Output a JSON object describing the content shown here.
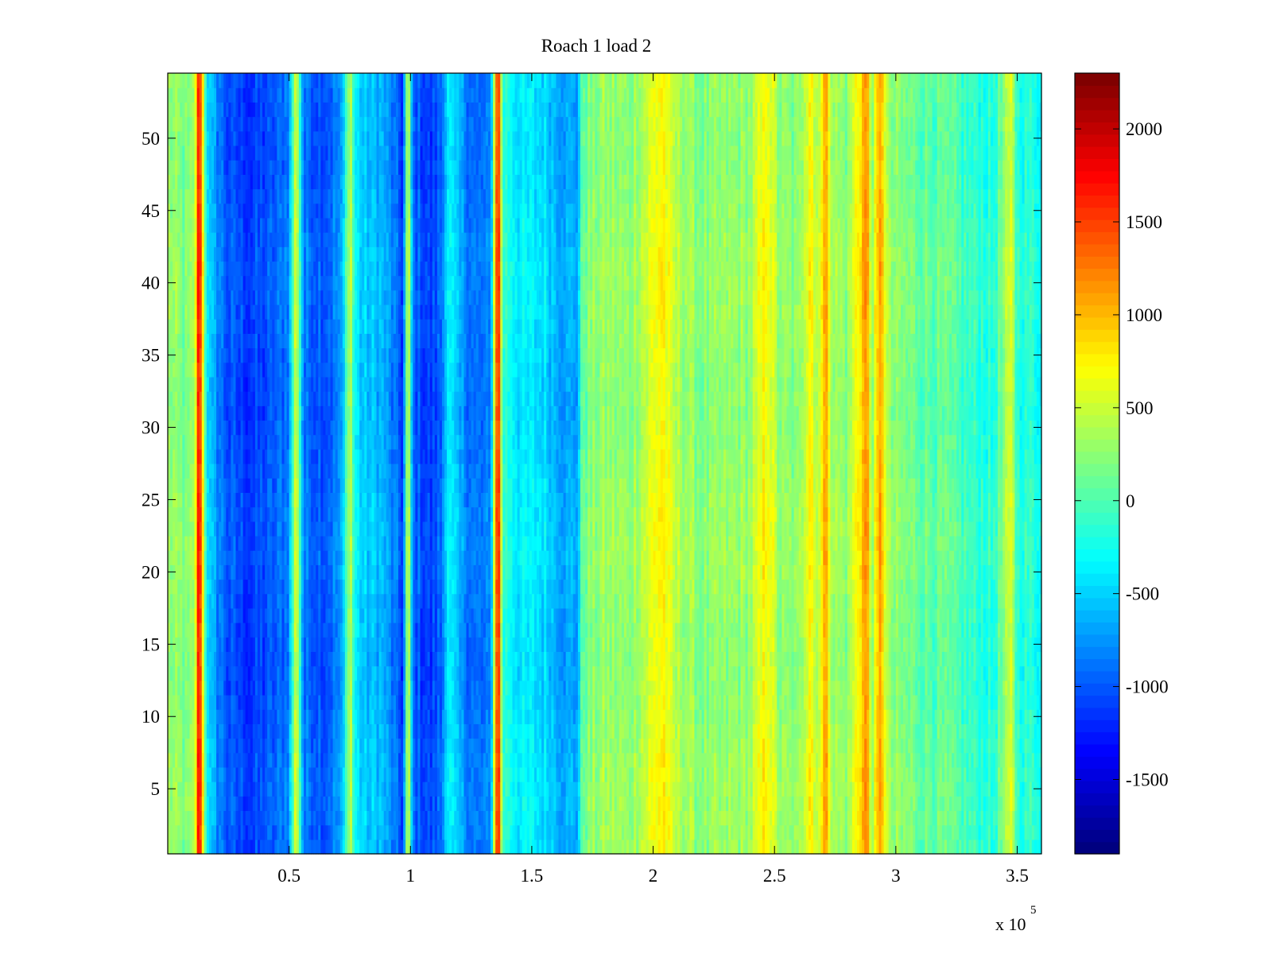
{
  "chart_data": {
    "type": "heatmap",
    "title": "Roach 1 load 2",
    "xlabel": "",
    "ylabel": "",
    "x_exponent_label": {
      "base": "x 10",
      "exponent": "5"
    },
    "xlim": [
      0,
      3.6
    ],
    "ylim": [
      0.5,
      54.5
    ],
    "x_ticks": [
      0.5,
      1,
      1.5,
      2,
      2.5,
      3,
      3.5
    ],
    "x_tick_labels": [
      "0.5",
      "1",
      "1.5",
      "2",
      "2.5",
      "3",
      "3.5"
    ],
    "y_ticks": [
      5,
      10,
      15,
      20,
      25,
      30,
      35,
      40,
      45,
      50
    ],
    "y_tick_labels": [
      "5",
      "10",
      "15",
      "20",
      "25",
      "30",
      "35",
      "40",
      "45",
      "50"
    ],
    "colorbar": {
      "colormap": "jet",
      "clim": [
        -1900,
        2300
      ],
      "ticks": [
        2000,
        1500,
        1000,
        500,
        0,
        -500,
        -1000,
        -1500
      ],
      "tick_labels": [
        "2000",
        "1500",
        "1000",
        "500",
        "0",
        "-500",
        "-1000",
        "-1500"
      ]
    },
    "rows": 54,
    "column_profile": [
      {
        "x": 0.0,
        "value": 300
      },
      {
        "x": 0.05,
        "value": 200
      },
      {
        "x": 0.08,
        "value": 150
      },
      {
        "x": 0.11,
        "value": 300
      },
      {
        "x": 0.13,
        "value": 2000
      },
      {
        "x": 0.15,
        "value": 300
      },
      {
        "x": 0.17,
        "value": -600
      },
      {
        "x": 0.25,
        "value": -1050
      },
      {
        "x": 0.35,
        "value": -1150
      },
      {
        "x": 0.45,
        "value": -1000
      },
      {
        "x": 0.5,
        "value": -800
      },
      {
        "x": 0.53,
        "value": 700
      },
      {
        "x": 0.56,
        "value": -900
      },
      {
        "x": 0.65,
        "value": -1000
      },
      {
        "x": 0.72,
        "value": -750
      },
      {
        "x": 0.75,
        "value": 600
      },
      {
        "x": 0.77,
        "value": -300
      },
      {
        "x": 0.8,
        "value": -550
      },
      {
        "x": 0.88,
        "value": -600
      },
      {
        "x": 0.93,
        "value": -900
      },
      {
        "x": 0.97,
        "value": -1150
      },
      {
        "x": 0.99,
        "value": 650
      },
      {
        "x": 1.01,
        "value": -950
      },
      {
        "x": 1.08,
        "value": -1150
      },
      {
        "x": 1.13,
        "value": -950
      },
      {
        "x": 1.15,
        "value": -300
      },
      {
        "x": 1.2,
        "value": -700
      },
      {
        "x": 1.27,
        "value": -950
      },
      {
        "x": 1.33,
        "value": -900
      },
      {
        "x": 1.36,
        "value": 1950
      },
      {
        "x": 1.38,
        "value": -100
      },
      {
        "x": 1.45,
        "value": -400
      },
      {
        "x": 1.55,
        "value": -450
      },
      {
        "x": 1.65,
        "value": -700
      },
      {
        "x": 1.69,
        "value": -650
      },
      {
        "x": 1.71,
        "value": 150
      },
      {
        "x": 1.8,
        "value": 300
      },
      {
        "x": 1.9,
        "value": 250
      },
      {
        "x": 1.97,
        "value": 500
      },
      {
        "x": 2.04,
        "value": 800
      },
      {
        "x": 2.08,
        "value": 450
      },
      {
        "x": 2.2,
        "value": 200
      },
      {
        "x": 2.3,
        "value": 250
      },
      {
        "x": 2.4,
        "value": 300
      },
      {
        "x": 2.47,
        "value": 800
      },
      {
        "x": 2.52,
        "value": 250
      },
      {
        "x": 2.6,
        "value": 200
      },
      {
        "x": 2.65,
        "value": 900
      },
      {
        "x": 2.67,
        "value": 350
      },
      {
        "x": 2.71,
        "value": 1100
      },
      {
        "x": 2.74,
        "value": 350
      },
      {
        "x": 2.8,
        "value": 250
      },
      {
        "x": 2.88,
        "value": 1200
      },
      {
        "x": 2.9,
        "value": 300
      },
      {
        "x": 2.94,
        "value": 1150
      },
      {
        "x": 2.97,
        "value": 250
      },
      {
        "x": 3.1,
        "value": 100
      },
      {
        "x": 3.2,
        "value": 50
      },
      {
        "x": 3.3,
        "value": -100
      },
      {
        "x": 3.4,
        "value": -200
      },
      {
        "x": 3.48,
        "value": 550
      },
      {
        "x": 3.5,
        "value": -150
      },
      {
        "x": 3.6,
        "value": -200
      }
    ]
  }
}
